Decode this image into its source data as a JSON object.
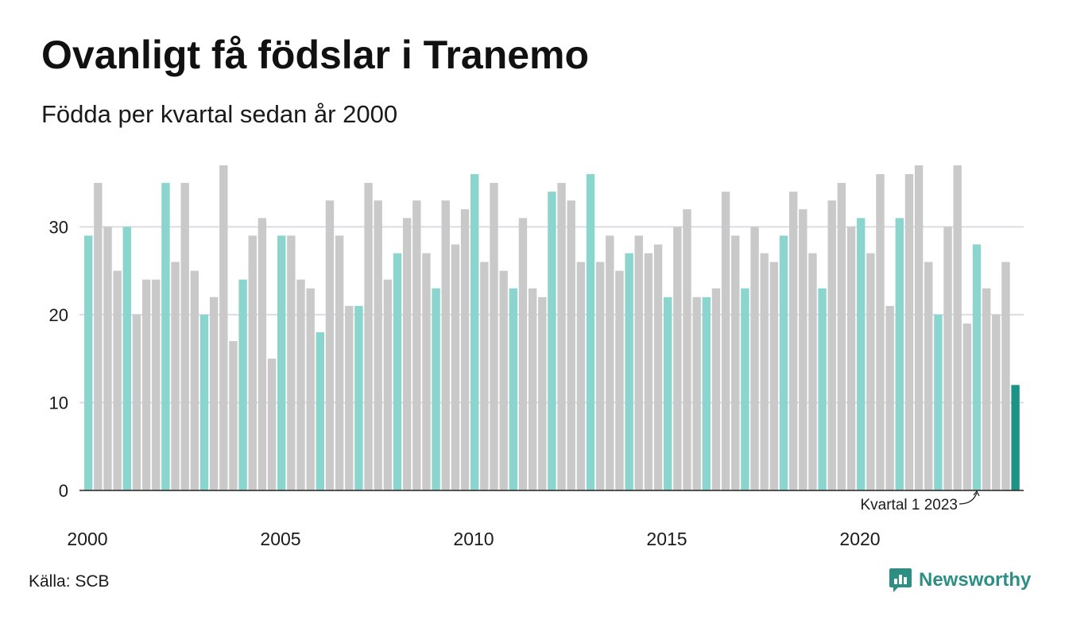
{
  "title": "Ovanligt få födslar i Tranemo",
  "subtitle": "Födda per kvartal sedan år 2000",
  "source": "Källa: SCB",
  "brand": {
    "name": "Newsworthy",
    "icon": "newsworthy-logo-icon"
  },
  "colors": {
    "q1": "#8ad6cf",
    "other": "#c9c9c9",
    "highlight": "#1b9386",
    "grid": "#dcdce4",
    "axis": "#222222"
  },
  "chart_data": {
    "type": "bar",
    "title": "Ovanligt få födslar i Tranemo",
    "subtitle": "Födda per kvartal sedan år 2000",
    "xlabel": "",
    "ylabel": "",
    "ylim": [
      0,
      37
    ],
    "yticks": [
      0,
      10,
      20,
      30
    ],
    "xticks": [
      "2000",
      "2005",
      "2010",
      "2015",
      "2020"
    ],
    "grid": true,
    "start_year": 2000,
    "values": [
      29,
      35,
      30,
      25,
      30,
      20,
      24,
      24,
      35,
      26,
      35,
      25,
      20,
      22,
      37,
      17,
      24,
      29,
      31,
      15,
      29,
      29,
      24,
      23,
      18,
      33,
      29,
      21,
      21,
      35,
      33,
      24,
      27,
      31,
      33,
      27,
      23,
      33,
      28,
      32,
      36,
      26,
      35,
      25,
      23,
      31,
      23,
      22,
      34,
      35,
      33,
      26,
      36,
      26,
      29,
      25,
      27,
      29,
      27,
      28,
      22,
      30,
      32,
      22,
      22,
      23,
      34,
      29,
      23,
      30,
      27,
      26,
      29,
      34,
      32,
      27,
      23,
      33,
      35,
      30,
      31,
      27,
      36,
      21,
      31,
      36,
      37,
      26,
      20,
      30,
      37,
      19,
      28,
      23,
      20,
      26,
      12
    ],
    "highlight_index": 96,
    "annotation": "Kvartal 1 2023"
  }
}
